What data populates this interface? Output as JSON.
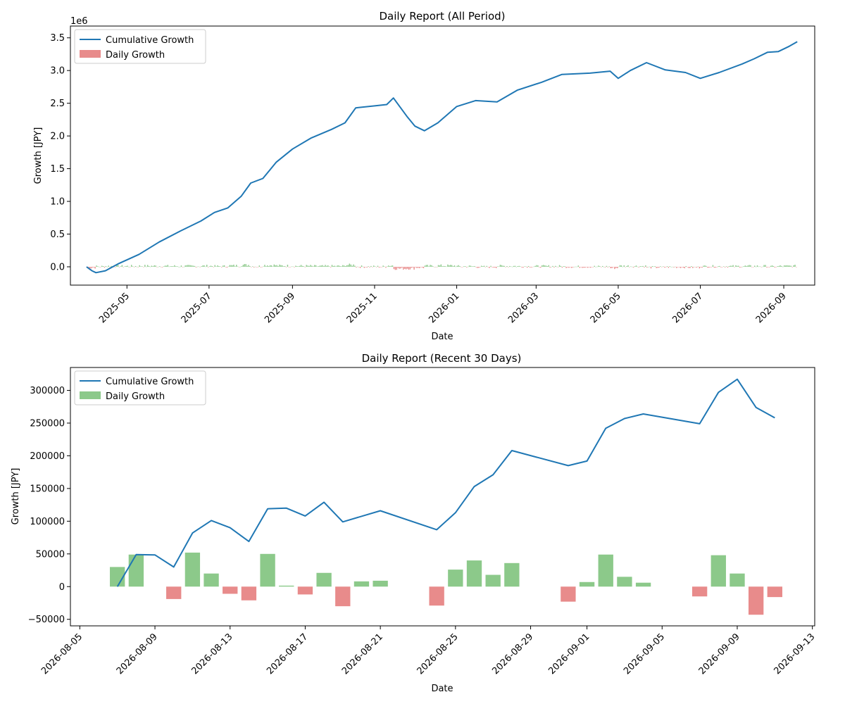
{
  "charts": {
    "top": {
      "title": "Daily Report (All Period)",
      "xlabel": "Date",
      "ylabel": "Growth [JPY]",
      "y_multiplier": "1e6",
      "y_ticks": [
        "0.0",
        "0.5",
        "1.0",
        "1.5",
        "2.0",
        "2.5",
        "3.0",
        "3.5"
      ],
      "x_ticks": [
        "2025-05",
        "2025-07",
        "2025-09",
        "2025-11",
        "2026-01",
        "2026-03",
        "2026-05",
        "2026-07",
        "2026-09"
      ],
      "legend": {
        "line": "Cumulative Growth",
        "bar": "Daily Growth"
      }
    },
    "bottom": {
      "title": "Daily Report (Recent 30 Days)",
      "xlabel": "Date",
      "ylabel": "Growth [JPY]",
      "y_ticks": [
        "−50000",
        "0",
        "50000",
        "100000",
        "150000",
        "200000",
        "250000",
        "300000"
      ],
      "x_ticks": [
        "2026-08-05",
        "2026-08-09",
        "2026-08-13",
        "2026-08-17",
        "2026-08-21",
        "2026-08-25",
        "2026-08-29",
        "2026-09-01",
        "2026-09-05",
        "2026-09-09",
        "2026-09-13"
      ],
      "legend": {
        "line": "Cumulative Growth",
        "bar": "Daily Growth"
      }
    }
  },
  "colors": {
    "line": "#1f77b4",
    "positive": "#8cc98a",
    "negative": "#e88b8b"
  },
  "chart_data": [
    {
      "type": "line",
      "title": "Daily Report (All Period)",
      "xlabel": "Date",
      "ylabel": "Growth [JPY]",
      "ylim": [
        -280000,
        3680000
      ],
      "xlim": [
        "2025-03-20",
        "2026-09-24"
      ],
      "grid": false,
      "legend": "top-left",
      "series": [
        {
          "name": "Cumulative Growth",
          "points": [
            [
              "2025-04-01",
              0
            ],
            [
              "2025-04-05",
              -60000
            ],
            [
              "2025-04-08",
              -90000
            ],
            [
              "2025-04-15",
              -60000
            ],
            [
              "2025-04-25",
              50000
            ],
            [
              "2025-05-10",
              190000
            ],
            [
              "2025-05-25",
              380000
            ],
            [
              "2025-06-10",
              550000
            ],
            [
              "2025-06-25",
              700000
            ],
            [
              "2025-07-05",
              830000
            ],
            [
              "2025-07-15",
              900000
            ],
            [
              "2025-07-25",
              1080000
            ],
            [
              "2025-08-01",
              1280000
            ],
            [
              "2025-08-10",
              1350000
            ],
            [
              "2025-08-20",
              1600000
            ],
            [
              "2025-09-01",
              1800000
            ],
            [
              "2025-09-15",
              1970000
            ],
            [
              "2025-09-30",
              2100000
            ],
            [
              "2025-10-10",
              2200000
            ],
            [
              "2025-10-18",
              2430000
            ],
            [
              "2025-11-01",
              2460000
            ],
            [
              "2025-11-10",
              2480000
            ],
            [
              "2025-11-15",
              2580000
            ],
            [
              "2025-11-25",
              2300000
            ],
            [
              "2025-12-01",
              2150000
            ],
            [
              "2025-12-08",
              2080000
            ],
            [
              "2025-12-18",
              2200000
            ],
            [
              "2026-01-01",
              2450000
            ],
            [
              "2026-01-15",
              2540000
            ],
            [
              "2026-01-31",
              2520000
            ],
            [
              "2026-02-15",
              2700000
            ],
            [
              "2026-03-05",
              2820000
            ],
            [
              "2026-03-20",
              2940000
            ],
            [
              "2026-04-10",
              2960000
            ],
            [
              "2026-04-25",
              2990000
            ],
            [
              "2026-05-01",
              2880000
            ],
            [
              "2026-05-10",
              3000000
            ],
            [
              "2026-05-22",
              3120000
            ],
            [
              "2026-06-05",
              3010000
            ],
            [
              "2026-06-20",
              2970000
            ],
            [
              "2026-07-01",
              2880000
            ],
            [
              "2026-07-15",
              2970000
            ],
            [
              "2026-08-01",
              3100000
            ],
            [
              "2026-08-10",
              3180000
            ],
            [
              "2026-08-20",
              3280000
            ],
            [
              "2026-08-28",
              3290000
            ],
            [
              "2026-09-05",
              3370000
            ],
            [
              "2026-09-11",
              3440000
            ]
          ]
        }
      ],
      "bars": {
        "name": "Daily Growth",
        "dates": [
          "2025-04-01",
          "2025-09-01",
          "2025-11-20",
          "2026-09-11"
        ],
        "note_range": [
          -90000,
          80000
        ]
      }
    },
    {
      "type": "bar",
      "title": "Daily Report (Recent 30 Days)",
      "xlabel": "Date",
      "ylabel": "Growth [JPY]",
      "ylim": [
        -60000,
        335000
      ],
      "xlim": [
        "2026-08-04T12:00",
        "2026-09-13T03:00"
      ],
      "grid": false,
      "legend": "top-left",
      "series": [
        {
          "name": "Cumulative Growth",
          "points": [
            [
              "2026-08-07",
              0
            ],
            [
              "2026-08-08",
              49000
            ],
            [
              "2026-08-09",
              48500
            ],
            [
              "2026-08-10",
              30000
            ],
            [
              "2026-08-11",
              82000
            ],
            [
              "2026-08-12",
              101000
            ],
            [
              "2026-08-13",
              90000
            ],
            [
              "2026-08-14",
              69000
            ],
            [
              "2026-08-15",
              119000
            ],
            [
              "2026-08-16",
              120000
            ],
            [
              "2026-08-17",
              108000
            ],
            [
              "2026-08-18",
              129000
            ],
            [
              "2026-08-19",
              99000
            ],
            [
              "2026-08-21",
              116000
            ],
            [
              "2026-08-24",
              87000
            ],
            [
              "2026-08-25",
              113000
            ],
            [
              "2026-08-26",
              153000
            ],
            [
              "2026-08-27",
              171000
            ],
            [
              "2026-08-28",
              208000
            ],
            [
              "2026-08-31",
              185000
            ],
            [
              "2026-09-01",
              192000
            ],
            [
              "2026-09-02",
              242000
            ],
            [
              "2026-09-03",
              257000
            ],
            [
              "2026-09-04",
              264000
            ],
            [
              "2026-09-07",
              249000
            ],
            [
              "2026-09-08",
              297000
            ],
            [
              "2026-09-09",
              317000
            ],
            [
              "2026-09-10",
              274000
            ],
            [
              "2026-09-11",
              258000
            ]
          ]
        },
        {
          "name": "Daily Growth",
          "points": [
            [
              "2026-08-07",
              30000
            ],
            [
              "2026-08-08",
              49000
            ],
            [
              "2026-08-10",
              -19000
            ],
            [
              "2026-08-11",
              52000
            ],
            [
              "2026-08-12",
              20000
            ],
            [
              "2026-08-13",
              -11000
            ],
            [
              "2026-08-14",
              -21000
            ],
            [
              "2026-08-15",
              50000
            ],
            [
              "2026-08-16",
              1500
            ],
            [
              "2026-08-17",
              -12000
            ],
            [
              "2026-08-18",
              21000
            ],
            [
              "2026-08-19",
              -30000
            ],
            [
              "2026-08-20",
              8000
            ],
            [
              "2026-08-21",
              9000
            ],
            [
              "2026-08-24",
              -29000
            ],
            [
              "2026-08-25",
              26000
            ],
            [
              "2026-08-26",
              40000
            ],
            [
              "2026-08-27",
              18000
            ],
            [
              "2026-08-28",
              36000
            ],
            [
              "2026-08-31",
              -23000
            ],
            [
              "2026-09-01",
              7000
            ],
            [
              "2026-09-02",
              49000
            ],
            [
              "2026-09-03",
              15000
            ],
            [
              "2026-09-04",
              6000
            ],
            [
              "2026-09-07",
              -15000
            ],
            [
              "2026-09-08",
              48000
            ],
            [
              "2026-09-09",
              20000
            ],
            [
              "2026-09-10",
              -43000
            ],
            [
              "2026-09-11",
              -16000
            ]
          ]
        }
      ]
    }
  ]
}
